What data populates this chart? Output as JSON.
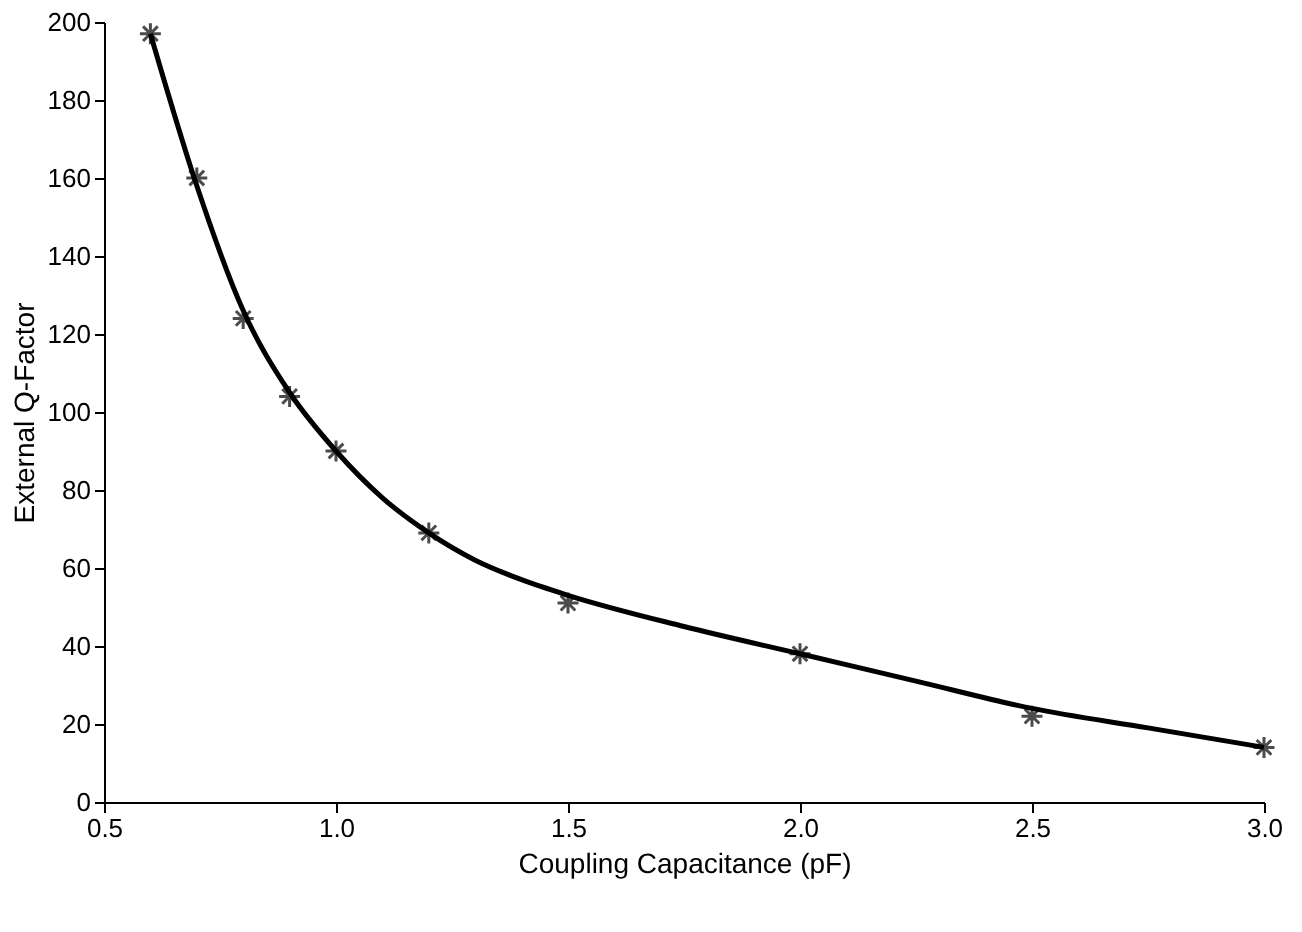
{
  "chart_data": {
    "type": "scatter",
    "xlabel": "Coupling Capacitance (pF)",
    "ylabel": "External Q-Factor",
    "xlim": [
      0.5,
      3.0
    ],
    "xticks": [
      0.5,
      {
        "value": 1,
        "label": "1.0"
      },
      1.5,
      {
        "value": 2,
        "label": "2.0"
      },
      2.5,
      {
        "value": 3,
        "label": "3.0"
      }
    ],
    "ylim": [
      0,
      200
    ],
    "yticks": [
      0,
      20,
      40,
      60,
      80,
      100,
      120,
      140,
      160,
      180,
      200
    ],
    "grid": false,
    "series": [
      {
        "type": "line",
        "color": "#000000",
        "line_style": "solid",
        "marker": "none",
        "x": [
          0.6,
          0.7,
          0.8,
          0.9,
          1.0,
          1.1,
          1.2,
          1.3,
          1.4,
          1.5,
          1.75,
          2.0,
          2.25,
          2.5,
          2.75,
          3.0
        ],
        "values": [
          197,
          158,
          126,
          105,
          90,
          78,
          69,
          62,
          57,
          53,
          45,
          38,
          31,
          24,
          19,
          14
        ]
      },
      {
        "type": "scatter",
        "color": "#000000",
        "marker": "cross",
        "x": [
          0.6,
          0.7,
          0.8,
          0.9,
          1.0,
          1.2,
          1.5,
          2.0,
          2.5,
          3.0
        ],
        "values": [
          197,
          160,
          124,
          104,
          90,
          69,
          51,
          38,
          22,
          14
        ]
      }
    ]
  }
}
